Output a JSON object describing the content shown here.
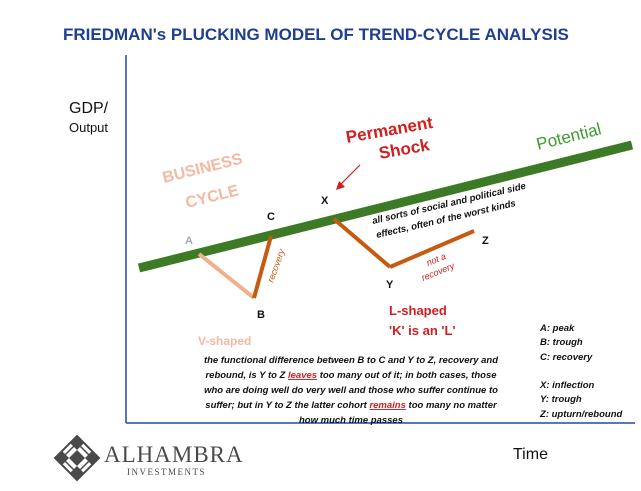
{
  "title": "FRIEDMAN's PLUCKING MODEL OF TREND-CYCLE ANALYSIS",
  "axes": {
    "y_label_line1": "GDP/",
    "y_label_line2": "Output",
    "x_label": "Time"
  },
  "labels": {
    "potential": "Potential",
    "business_cycle_line1": "BUSINESS",
    "business_cycle_line2": "CYCLE",
    "permanent_line1": "Permanent",
    "permanent_line2": "Shock",
    "point_a": "A",
    "point_b": "B",
    "point_c": "C",
    "point_x": "X",
    "point_y": "Y",
    "point_z": "Z",
    "recovery": "recovery",
    "not_a_recovery_line1": "not a",
    "not_a_recovery_line2": "recovery",
    "side_effects_line1": "all sorts of social and political side",
    "side_effects_line2": "effects, often of the worst kinds",
    "l_shaped_line1": "L-shaped",
    "l_shaped_line2": "'K' is an 'L'",
    "v_shaped": "V-shaped"
  },
  "legend": {
    "peak": "A: peak",
    "trough": "B: trough",
    "recovery": "C: recovery",
    "inflection": "X: inflection",
    "y_trough": "Y: trough",
    "upturn": "Z: upturn/rebound"
  },
  "explanation": {
    "line1": "the functional difference between B to C and Y to Z, recovery and",
    "line2_pre": "rebound,  is Y to Z ",
    "line2_em": "leaves",
    "line2_post": " too many out of it; in both cases, those",
    "line3": "who are doing well do very well and those who suffer continue to",
    "line4_pre": "suffer; but in Y to Z the latter cohort ",
    "line4_em": "remains",
    "line4_post": " too many no matter",
    "line5": "how much time passes"
  },
  "logo": {
    "name": "ALHAMBRA",
    "sub": "INVESTMENTS"
  },
  "colors": {
    "title": "#1f3f8f",
    "potential_line": "#3d7a26",
    "potential_text": "#3d9a2c",
    "business_cycle": "#f4b9a3",
    "v_segment": "#f2b08a",
    "recovery_segment": "#c55a11",
    "shock": "#d11f1f",
    "axis": "#1f4e9a",
    "logo": "#4a4a4a"
  }
}
